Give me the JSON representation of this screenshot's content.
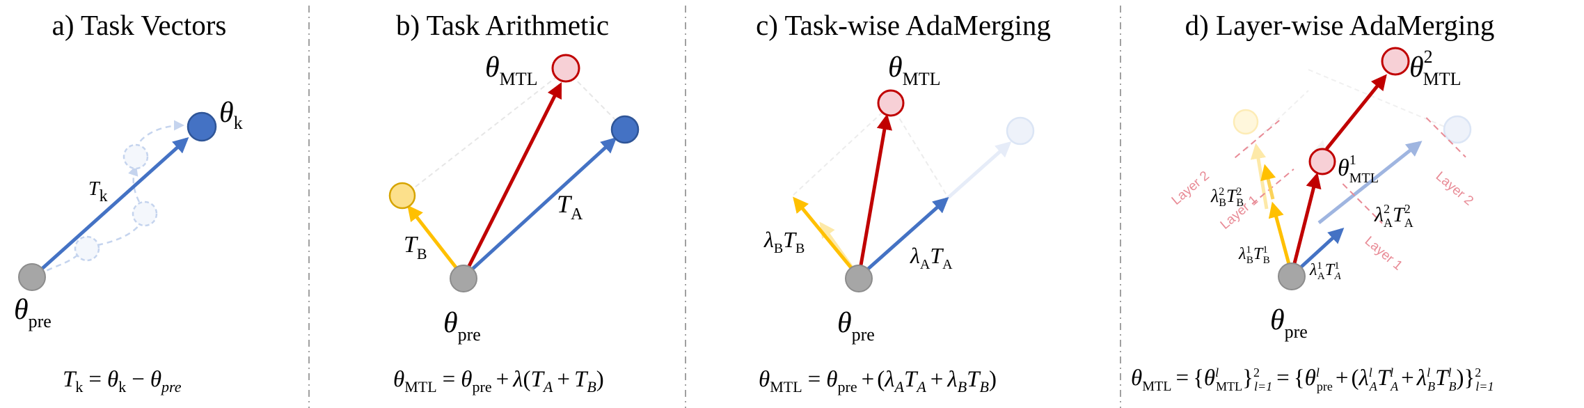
{
  "panels": {
    "a": {
      "title": "a) Task Vectors",
      "formula": "T_k = θ_k − θ_pre"
    },
    "b": {
      "title": "b) Task Arithmetic",
      "formula": "θ_MTL = θ_pre + λ(T_A + T_B)"
    },
    "c": {
      "title": "c) Task-wise AdaMerging",
      "formula": "θ_MTL = θ_pre + (λ_A T_A + λ_B T_B)"
    },
    "d": {
      "title": "d) Layer-wise AdaMerging",
      "formula": "θ_MTL = {θ^l_MTL}^2_{l=1} = {θ^l_pre + (λ^l_A T^l_A + λ^l_B T^l_B)}^2_{l=1}"
    }
  },
  "symbols": {
    "theta": "θ",
    "lambda": "λ",
    "T": "T",
    "pre": "pre",
    "MTL": "MTL",
    "k": "k",
    "A": "A",
    "B": "B",
    "A_it": "A",
    "B_it": "B",
    "pre_it": "pre",
    "l": "l",
    "one": "1",
    "two": "2",
    "eq": "=",
    "minus": "−",
    "plus": "+",
    "lparen": "(",
    "rparen": ")",
    "lbrace": "{",
    "rbrace": "}",
    "l_eq_1": "l=1",
    "layer1": "Layer 1",
    "layer2": "Layer 2"
  },
  "colors": {
    "blue": "#4472c4",
    "red": "#c00000",
    "yellow": "#ffc000",
    "gray": "#a6a6a6",
    "pink_fill": "#f7d0d6",
    "yellow_fill": "#fce08b",
    "faded_blue": "#dbe5f5",
    "layer_pink": "#e88a95",
    "divider": "#a0a0a0"
  }
}
